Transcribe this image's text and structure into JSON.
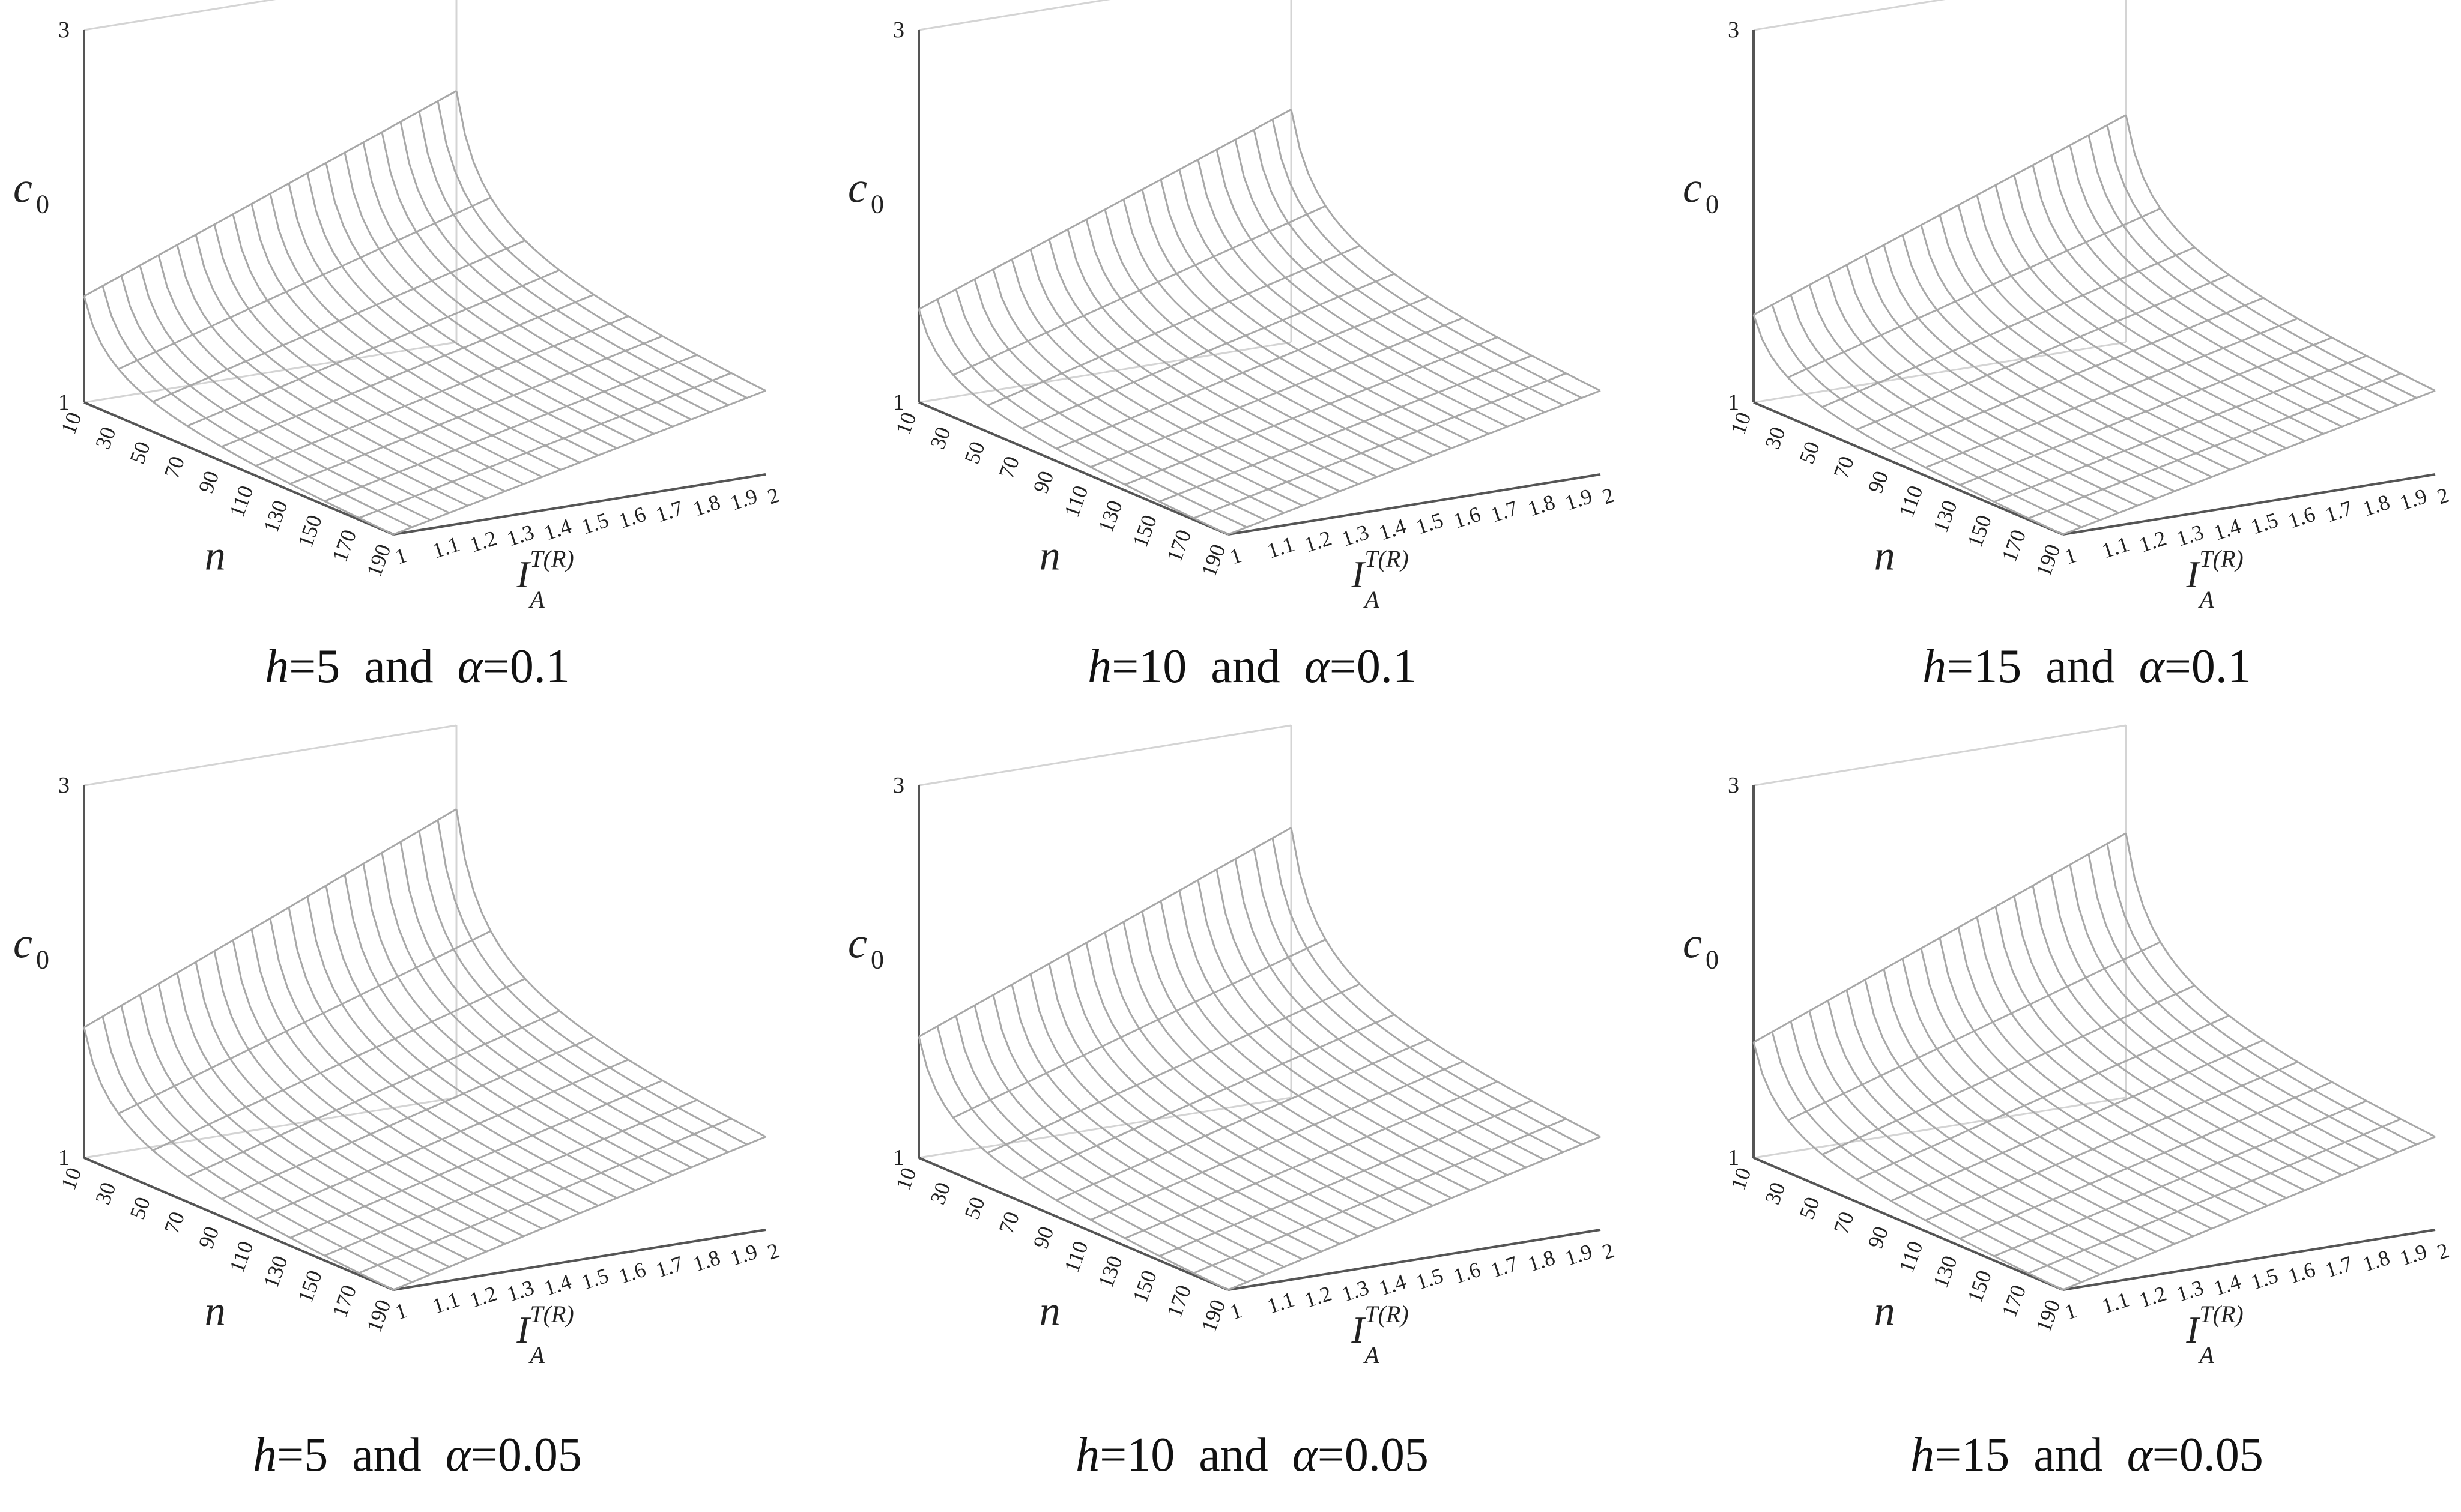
{
  "figure": {
    "surface_color": "#a8a8a8",
    "axis_color": "#555555",
    "box_color": "#d4d4d4",
    "text_color": "#222222"
  },
  "chart_data": [
    {
      "type": "surface",
      "h": "5",
      "alpha": "0.1",
      "caption": {
        "h_symbol": "h",
        "eq": "=",
        "h_value": "5",
        "and": "and",
        "alpha_symbol": "α",
        "alpha_value": "0.1"
      },
      "zlabel": "c0",
      "zlabel_sub": "0",
      "zlim": [
        1,
        3
      ],
      "z_ticks": [
        "1",
        "3"
      ],
      "ylabel": "n",
      "n_ticks": [
        "10",
        "30",
        "50",
        "70",
        "90",
        "110",
        "130",
        "150",
        "170",
        "190"
      ],
      "xlabel": "I_A^{T(R)}",
      "x_ticks": [
        "1",
        "1.1",
        "1.2",
        "1.3",
        "1.4",
        "1.5",
        "1.6",
        "1.7",
        "1.8",
        "1.9",
        "2"
      ],
      "surface": {
        "n_range": [
          10,
          190
        ],
        "I_range": [
          1,
          2
        ],
        "c0_at_n10_I2": 2.35,
        "c0_at_n10_I1": 1.57,
        "c0_at_n190_I2": 1.45,
        "c0_at_n190_I1": 1.0
      }
    },
    {
      "type": "surface",
      "h": "10",
      "alpha": "0.1",
      "caption": {
        "h_symbol": "h",
        "eq": "=",
        "h_value": "10",
        "and": "and",
        "alpha_symbol": "α",
        "alpha_value": "0.1"
      },
      "zlabel": "c0",
      "zlabel_sub": "0",
      "zlim": [
        1,
        3
      ],
      "z_ticks": [
        "1",
        "3"
      ],
      "ylabel": "n",
      "n_ticks": [
        "10",
        "30",
        "50",
        "70",
        "90",
        "110",
        "130",
        "150",
        "170",
        "190"
      ],
      "xlabel": "I_A^{T(R)}",
      "x_ticks": [
        "1",
        "1.1",
        "1.2",
        "1.3",
        "1.4",
        "1.5",
        "1.6",
        "1.7",
        "1.8",
        "1.9",
        "2"
      ],
      "surface": {
        "n_range": [
          10,
          190
        ],
        "I_range": [
          1,
          2
        ],
        "c0_at_n10_I2": 2.25,
        "c0_at_n10_I1": 1.5,
        "c0_at_n190_I2": 1.45,
        "c0_at_n190_I1": 1.0
      }
    },
    {
      "type": "surface",
      "h": "15",
      "alpha": "0.1",
      "caption": {
        "h_symbol": "h",
        "eq": "=",
        "h_value": "15",
        "and": "and",
        "alpha_symbol": "α",
        "alpha_value": "0.1"
      },
      "zlabel": "c0",
      "zlabel_sub": "0",
      "zlim": [
        1,
        3
      ],
      "z_ticks": [
        "1",
        "3"
      ],
      "ylabel": "n",
      "n_ticks": [
        "10",
        "30",
        "50",
        "70",
        "90",
        "110",
        "130",
        "150",
        "170",
        "190"
      ],
      "xlabel": "I_A^{T(R)}",
      "x_ticks": [
        "1",
        "1.1",
        "1.2",
        "1.3",
        "1.4",
        "1.5",
        "1.6",
        "1.7",
        "1.8",
        "1.9",
        "2"
      ],
      "surface": {
        "n_range": [
          10,
          190
        ],
        "I_range": [
          1,
          2
        ],
        "c0_at_n10_I2": 2.22,
        "c0_at_n10_I1": 1.47,
        "c0_at_n190_I2": 1.45,
        "c0_at_n190_I1": 1.0
      }
    },
    {
      "type": "surface",
      "h": "5",
      "alpha": "0.05",
      "caption": {
        "h_symbol": "h",
        "eq": "=",
        "h_value": "5",
        "and": "and",
        "alpha_symbol": "α",
        "alpha_value": "0.05"
      },
      "zlabel": "c0",
      "zlabel_sub": "0",
      "zlim": [
        1,
        3
      ],
      "z_ticks": [
        "1",
        "3"
      ],
      "ylabel": "n",
      "n_ticks": [
        "10",
        "30",
        "50",
        "70",
        "90",
        "110",
        "130",
        "150",
        "170",
        "190"
      ],
      "xlabel": "I_A^{T(R)}",
      "x_ticks": [
        "1",
        "1.1",
        "1.2",
        "1.3",
        "1.4",
        "1.5",
        "1.6",
        "1.7",
        "1.8",
        "1.9",
        "2"
      ],
      "surface": {
        "n_range": [
          10,
          190
        ],
        "I_range": [
          1,
          2
        ],
        "c0_at_n10_I2": 2.55,
        "c0_at_n10_I1": 1.7,
        "c0_at_n190_I2": 1.5,
        "c0_at_n190_I1": 1.0
      }
    },
    {
      "type": "surface",
      "h": "10",
      "alpha": "0.05",
      "caption": {
        "h_symbol": "h",
        "eq": "=",
        "h_value": "10",
        "and": "and",
        "alpha_symbol": "α",
        "alpha_value": "0.05"
      },
      "zlabel": "c0",
      "zlabel_sub": "0",
      "zlim": [
        1,
        3
      ],
      "z_ticks": [
        "1",
        "3"
      ],
      "ylabel": "n",
      "n_ticks": [
        "10",
        "30",
        "50",
        "70",
        "90",
        "110",
        "130",
        "150",
        "170",
        "190"
      ],
      "xlabel": "I_A^{T(R)}",
      "x_ticks": [
        "1",
        "1.1",
        "1.2",
        "1.3",
        "1.4",
        "1.5",
        "1.6",
        "1.7",
        "1.8",
        "1.9",
        "2"
      ],
      "surface": {
        "n_range": [
          10,
          190
        ],
        "I_range": [
          1,
          2
        ],
        "c0_at_n10_I2": 2.45,
        "c0_at_n10_I1": 1.65,
        "c0_at_n190_I2": 1.5,
        "c0_at_n190_I1": 1.0
      }
    },
    {
      "type": "surface",
      "h": "15",
      "alpha": "0.05",
      "caption": {
        "h_symbol": "h",
        "eq": "=",
        "h_value": "15",
        "and": "and",
        "alpha_symbol": "α",
        "alpha_value": "0.05"
      },
      "zlabel": "c0",
      "zlabel_sub": "0",
      "zlim": [
        1,
        3
      ],
      "z_ticks": [
        "1",
        "3"
      ],
      "ylabel": "n",
      "n_ticks": [
        "10",
        "30",
        "50",
        "70",
        "90",
        "110",
        "130",
        "150",
        "170",
        "190"
      ],
      "xlabel": "I_A^{T(R)}",
      "x_ticks": [
        "1",
        "1.1",
        "1.2",
        "1.3",
        "1.4",
        "1.5",
        "1.6",
        "1.7",
        "1.8",
        "1.9",
        "2"
      ],
      "surface": {
        "n_range": [
          10,
          190
        ],
        "I_range": [
          1,
          2
        ],
        "c0_at_n10_I2": 2.42,
        "c0_at_n10_I1": 1.62,
        "c0_at_n190_I2": 1.5,
        "c0_at_n190_I1": 1.0
      }
    }
  ]
}
